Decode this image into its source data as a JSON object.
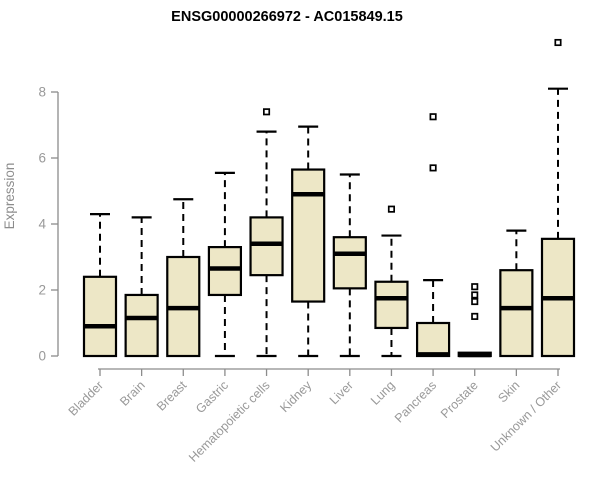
{
  "page": {
    "background": "#ffffff"
  },
  "chart_data": {
    "type": "boxplot",
    "title": "ENSG00000266972 - AC015849.15",
    "ylabel": "Expression",
    "xlabel": "",
    "ylim": [
      0,
      9.6
    ],
    "yticks": [
      0,
      2,
      4,
      6,
      8
    ],
    "grid": false,
    "legend": false,
    "categories": [
      "Bladder",
      "Brain",
      "Breast",
      "Gastric",
      "Hematopoietic cells",
      "Kidney",
      "Liver",
      "Lung",
      "Pancreas",
      "Prostate",
      "Skin",
      "Unknown / Other"
    ],
    "series": [
      {
        "name": "Bladder",
        "whisker_low": null,
        "q1": 0,
        "median": 0.9,
        "q3": 2.4,
        "whisker_high": 4.3,
        "outliers": []
      },
      {
        "name": "Brain",
        "whisker_low": null,
        "q1": 0,
        "median": 1.15,
        "q3": 1.85,
        "whisker_high": 4.2,
        "outliers": []
      },
      {
        "name": "Breast",
        "whisker_low": null,
        "q1": 0,
        "median": 1.45,
        "q3": 3.0,
        "whisker_high": 4.75,
        "outliers": []
      },
      {
        "name": "Gastric",
        "whisker_low": 0,
        "q1": 1.85,
        "median": 2.65,
        "q3": 3.3,
        "whisker_high": 5.55,
        "outliers": []
      },
      {
        "name": "Hematopoietic cells",
        "whisker_low": 0,
        "q1": 2.45,
        "median": 3.4,
        "q3": 4.2,
        "whisker_high": 6.8,
        "outliers": [
          7.4
        ]
      },
      {
        "name": "Kidney",
        "whisker_low": 0,
        "q1": 1.65,
        "median": 4.9,
        "q3": 5.65,
        "whisker_high": 6.95,
        "outliers": []
      },
      {
        "name": "Liver",
        "whisker_low": 0,
        "q1": 2.05,
        "median": 3.1,
        "q3": 3.6,
        "whisker_high": 5.5,
        "outliers": []
      },
      {
        "name": "Lung",
        "whisker_low": 0,
        "q1": 0.85,
        "median": 1.75,
        "q3": 2.25,
        "whisker_high": 3.65,
        "outliers": [
          4.45
        ]
      },
      {
        "name": "Pancreas",
        "whisker_low": null,
        "q1": 0,
        "median": 0.05,
        "q3": 1.0,
        "whisker_high": 2.3,
        "outliers": [
          5.7,
          7.25
        ]
      },
      {
        "name": "Prostate",
        "whisker_low": null,
        "q1": 0,
        "median": 0.03,
        "q3": 0.1,
        "whisker_high": null,
        "outliers": [
          1.2,
          1.65,
          1.85,
          2.1
        ]
      },
      {
        "name": "Skin",
        "whisker_low": null,
        "q1": 0,
        "median": 1.45,
        "q3": 2.6,
        "whisker_high": 3.8,
        "outliers": []
      },
      {
        "name": "Unknown / Other",
        "whisker_low": null,
        "q1": 0,
        "median": 1.75,
        "q3": 3.55,
        "whisker_high": 8.1,
        "outliers": [
          9.5
        ]
      }
    ],
    "colors": {
      "box_fill": "#EDE7C6",
      "box_stroke": "#000000",
      "whisker": "#000000",
      "axis": "#8C8C8C",
      "tick_label": "#999999",
      "axis_label": "#8C8C8C",
      "title": "#000000",
      "outlier_fill": "#FFFFFF"
    }
  }
}
